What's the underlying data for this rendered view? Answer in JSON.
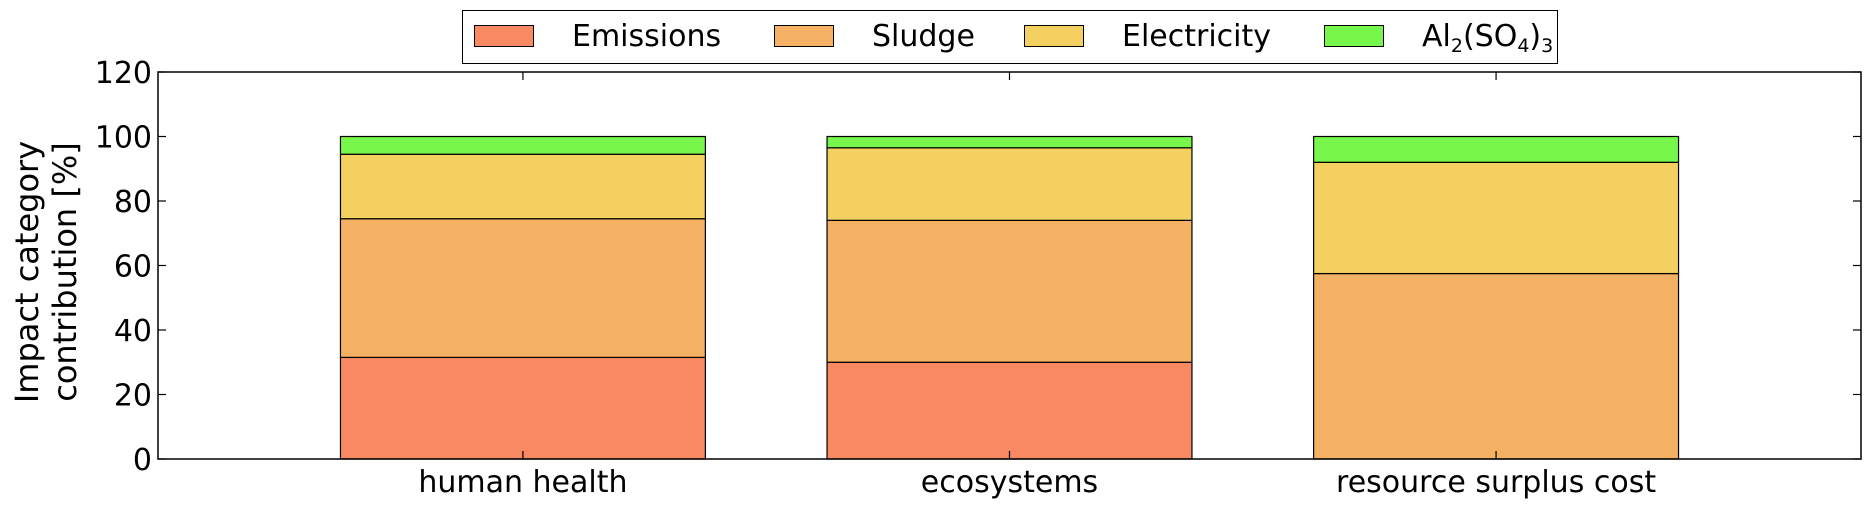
{
  "chart_data": {
    "type": "bar",
    "stacked": true,
    "categories": [
      "human health",
      "ecosystems",
      "resource surplus cost"
    ],
    "series": [
      {
        "name": "Emissions",
        "color": "#f98962",
        "values": [
          31.5,
          30.0,
          0
        ]
      },
      {
        "name": "Sludge",
        "color": "#f4b063",
        "values": [
          43.0,
          44.0,
          57.5
        ]
      },
      {
        "name": "Electricity",
        "color": "#f3d05f",
        "values": [
          20.0,
          22.5,
          34.5
        ]
      },
      {
        "name": "Al₂(SO₄)₃",
        "color": "#77f74b",
        "values": [
          5.5,
          3.5,
          8.0
        ]
      }
    ],
    "ylabel_lines": [
      "Impact category",
      "contribution [%]"
    ],
    "ylim": [
      0,
      120
    ],
    "yticks": [
      0,
      20,
      40,
      60,
      80,
      100,
      120
    ],
    "legend_position": "top-center",
    "grid": false
  },
  "legend": {
    "items": [
      {
        "label": "Emissions",
        "color": "#f98962"
      },
      {
        "label": "Sludge",
        "color": "#f4b063"
      },
      {
        "label": "Electricity",
        "color": "#f3d05f"
      },
      {
        "label_main": "Al",
        "sub1": "2",
        "mid": "(SO",
        "sub2": "4",
        "close": ")",
        "sub3": "3",
        "color": "#77f74b"
      }
    ]
  }
}
